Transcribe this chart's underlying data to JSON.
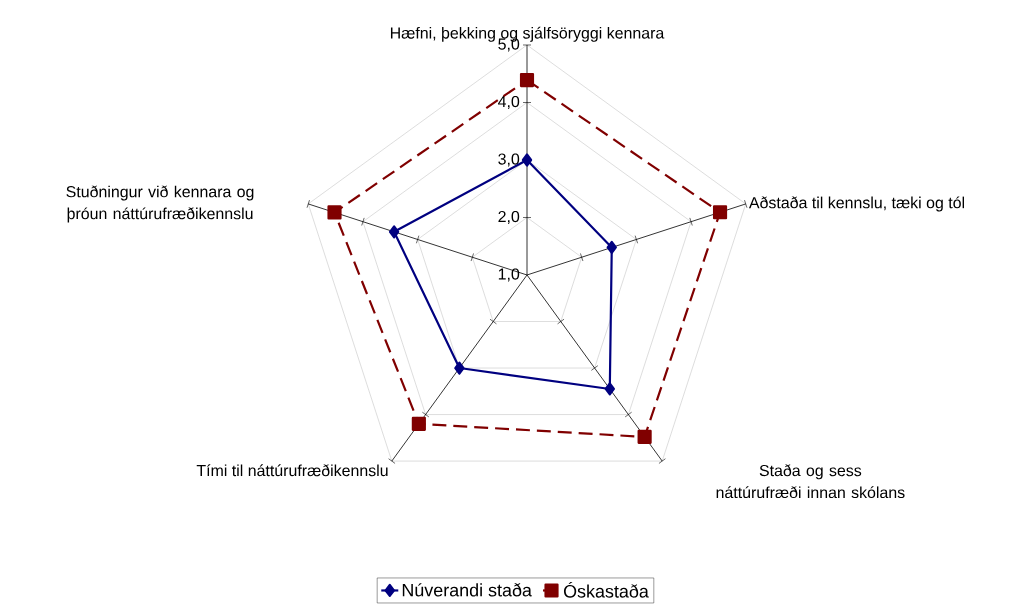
{
  "chart_data": {
    "type": "radar",
    "categories": [
      "Hæfni, þekking og sjálfsöryggi kennara",
      "Aðstaða til kennslu, tæki og tól",
      "Staða og sess náttúrufræði innan skólans",
      "Tími til náttúrufræðikennslu",
      "Stuðningur við kennara og þróun náttúrufræðikennslu"
    ],
    "series": [
      {
        "name": "Núverandi staða",
        "color": "#000080",
        "marker": "diamond",
        "line_style": "solid",
        "values": [
          3.0,
          2.55,
          3.45,
          3.0,
          3.43
        ]
      },
      {
        "name": "Óskastaða",
        "color": "#800000",
        "marker": "square",
        "line_style": "dashed",
        "values": [
          4.39,
          4.53,
          4.48,
          4.2,
          4.52
        ]
      }
    ],
    "ylim": [
      1,
      5
    ],
    "yticks": [
      {
        "value": 1,
        "label": "1,0"
      },
      {
        "value": 2,
        "label": "2,0"
      },
      {
        "value": 3,
        "label": "3,0"
      },
      {
        "value": 4,
        "label": "4,0"
      },
      {
        "value": 5,
        "label": "5,0"
      }
    ],
    "grid": true,
    "legend": "bottom"
  }
}
